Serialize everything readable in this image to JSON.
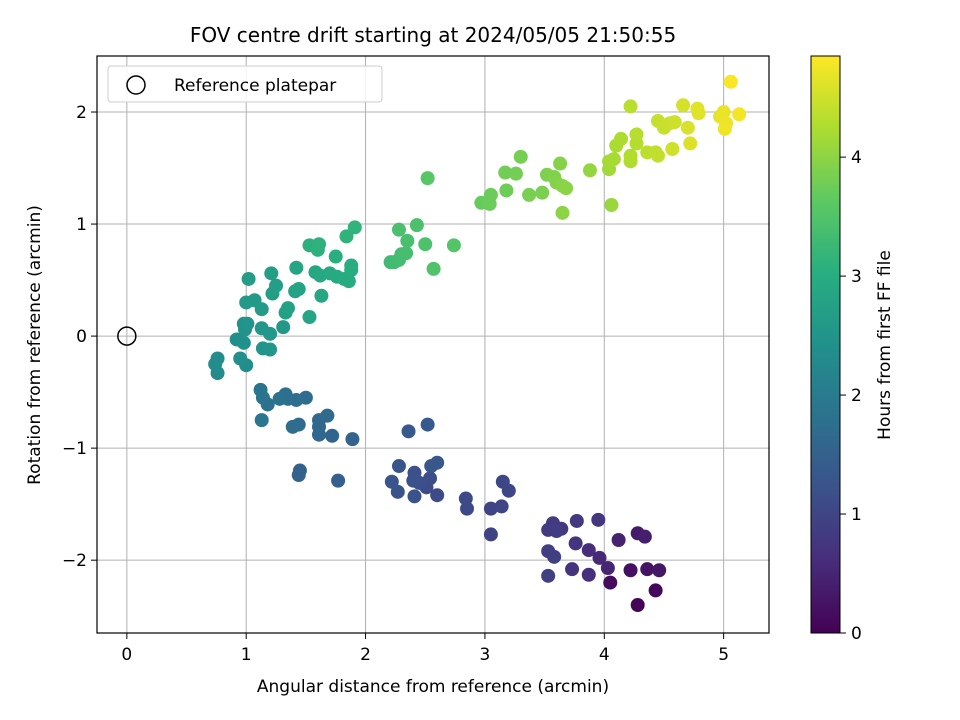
{
  "chart_data": {
    "type": "scatter",
    "title": "FOV centre drift starting at 2024/05/05 21:50:55",
    "xlabel": "Angular distance from reference (arcmin)",
    "ylabel": "Rotation from reference (arcmin)",
    "xlim": [
      -0.25,
      5.38
    ],
    "ylim": [
      -2.65,
      2.5
    ],
    "xticks": [
      0,
      1,
      2,
      3,
      4,
      5
    ],
    "xtick_labels": [
      "0",
      "1",
      "2",
      "3",
      "4",
      "5"
    ],
    "yticks": [
      -2,
      -1,
      0,
      1,
      2
    ],
    "ytick_labels": [
      "−2",
      "−1",
      "0",
      "1",
      "2"
    ],
    "grid": true,
    "legend": {
      "location": "upper-left",
      "entries": [
        "Reference platepar"
      ]
    },
    "reference_point": {
      "x": 0,
      "y": 0,
      "label": "Reference platepar"
    },
    "colorbar": {
      "label": "Hours from first FF file",
      "colormap": "viridis",
      "range": [
        0,
        4.85
      ],
      "ticks": [
        0,
        1,
        2,
        3,
        4
      ],
      "tick_labels": [
        "0",
        "1",
        "2",
        "3",
        "4"
      ]
    },
    "points": [
      {
        "x": 4.28,
        "y": -2.4,
        "c": 0.05
      },
      {
        "x": 4.43,
        "y": -2.27,
        "c": 0.1
      },
      {
        "x": 4.05,
        "y": -2.2,
        "c": 0.15
      },
      {
        "x": 4.22,
        "y": -2.09,
        "c": 0.2
      },
      {
        "x": 4.36,
        "y": -2.08,
        "c": 0.25
      },
      {
        "x": 4.46,
        "y": -2.09,
        "c": 0.3
      },
      {
        "x": 4.28,
        "y": -1.76,
        "c": 0.35
      },
      {
        "x": 4.34,
        "y": -1.79,
        "c": 0.4
      },
      {
        "x": 4.12,
        "y": -1.82,
        "c": 0.45
      },
      {
        "x": 4.03,
        "y": -2.07,
        "c": 0.5
      },
      {
        "x": 3.96,
        "y": -1.98,
        "c": 0.55
      },
      {
        "x": 3.87,
        "y": -1.91,
        "c": 0.6
      },
      {
        "x": 3.87,
        "y": -2.13,
        "c": 0.65
      },
      {
        "x": 3.73,
        "y": -2.08,
        "c": 0.7
      },
      {
        "x": 3.76,
        "y": -1.85,
        "c": 0.72
      },
      {
        "x": 3.95,
        "y": -1.64,
        "c": 0.75
      },
      {
        "x": 3.77,
        "y": -1.65,
        "c": 0.78
      },
      {
        "x": 3.64,
        "y": -1.72,
        "c": 0.8
      },
      {
        "x": 3.57,
        "y": -1.67,
        "c": 0.82
      },
      {
        "x": 3.53,
        "y": -1.73,
        "c": 0.84
      },
      {
        "x": 3.6,
        "y": -1.74,
        "c": 0.86
      },
      {
        "x": 3.53,
        "y": -1.92,
        "c": 0.88
      },
      {
        "x": 3.58,
        "y": -1.97,
        "c": 0.9
      },
      {
        "x": 3.53,
        "y": -2.14,
        "c": 0.92
      },
      {
        "x": 3.05,
        "y": -1.77,
        "c": 0.95
      },
      {
        "x": 3.05,
        "y": -1.54,
        "c": 0.98
      },
      {
        "x": 3.14,
        "y": -1.52,
        "c": 1.0
      },
      {
        "x": 3.2,
        "y": -1.38,
        "c": 1.02
      },
      {
        "x": 3.15,
        "y": -1.3,
        "c": 1.04
      },
      {
        "x": 2.85,
        "y": -1.54,
        "c": 1.06
      },
      {
        "x": 2.84,
        "y": -1.45,
        "c": 1.08
      },
      {
        "x": 2.6,
        "y": -1.42,
        "c": 1.1
      },
      {
        "x": 2.51,
        "y": -1.35,
        "c": 1.12
      },
      {
        "x": 2.54,
        "y": -1.27,
        "c": 1.14
      },
      {
        "x": 2.45,
        "y": -1.31,
        "c": 1.16
      },
      {
        "x": 2.41,
        "y": -1.22,
        "c": 1.18
      },
      {
        "x": 2.4,
        "y": -1.29,
        "c": 1.2
      },
      {
        "x": 2.41,
        "y": -1.43,
        "c": 1.22
      },
      {
        "x": 2.27,
        "y": -1.39,
        "c": 1.24
      },
      {
        "x": 2.22,
        "y": -1.3,
        "c": 1.26
      },
      {
        "x": 2.28,
        "y": -1.16,
        "c": 1.28
      },
      {
        "x": 2.55,
        "y": -1.16,
        "c": 1.3
      },
      {
        "x": 2.6,
        "y": -1.13,
        "c": 1.32
      },
      {
        "x": 2.36,
        "y": -0.85,
        "c": 1.34
      },
      {
        "x": 2.52,
        "y": -0.79,
        "c": 1.36
      },
      {
        "x": 1.77,
        "y": -1.29,
        "c": 1.45
      },
      {
        "x": 1.45,
        "y": -1.2,
        "c": 1.5
      },
      {
        "x": 1.44,
        "y": -1.24,
        "c": 1.52
      },
      {
        "x": 1.89,
        "y": -0.92,
        "c": 1.56
      },
      {
        "x": 1.72,
        "y": -0.89,
        "c": 1.58
      },
      {
        "x": 1.61,
        "y": -0.88,
        "c": 1.6
      },
      {
        "x": 1.61,
        "y": -0.81,
        "c": 1.62
      },
      {
        "x": 1.61,
        "y": -0.75,
        "c": 1.64
      },
      {
        "x": 1.68,
        "y": -0.71,
        "c": 1.66
      },
      {
        "x": 1.44,
        "y": -0.79,
        "c": 1.68
      },
      {
        "x": 1.39,
        "y": -0.81,
        "c": 1.7
      },
      {
        "x": 1.5,
        "y": -0.55,
        "c": 1.72
      },
      {
        "x": 1.42,
        "y": -0.57,
        "c": 1.74
      },
      {
        "x": 1.35,
        "y": -0.56,
        "c": 1.76
      },
      {
        "x": 1.33,
        "y": -0.52,
        "c": 1.78
      },
      {
        "x": 1.28,
        "y": -0.56,
        "c": 1.8
      },
      {
        "x": 1.18,
        "y": -0.61,
        "c": 1.82
      },
      {
        "x": 1.14,
        "y": -0.55,
        "c": 1.84
      },
      {
        "x": 1.12,
        "y": -0.48,
        "c": 1.86
      },
      {
        "x": 1.13,
        "y": -0.75,
        "c": 1.88
      },
      {
        "x": 0.76,
        "y": -0.33,
        "c": 2.3
      },
      {
        "x": 0.74,
        "y": -0.25,
        "c": 2.32
      },
      {
        "x": 0.76,
        "y": -0.2,
        "c": 2.34
      },
      {
        "x": 1.0,
        "y": -0.26,
        "c": 2.36
      },
      {
        "x": 0.95,
        "y": -0.2,
        "c": 2.38
      },
      {
        "x": 0.92,
        "y": -0.03,
        "c": 2.4
      },
      {
        "x": 0.98,
        "y": -0.06,
        "c": 2.42
      },
      {
        "x": 0.99,
        "y": 0.06,
        "c": 2.44
      },
      {
        "x": 0.98,
        "y": 0.11,
        "c": 2.46
      },
      {
        "x": 1.01,
        "y": 0.11,
        "c": 2.48
      },
      {
        "x": 1.14,
        "y": -0.11,
        "c": 2.5
      },
      {
        "x": 1.2,
        "y": -0.12,
        "c": 2.52
      },
      {
        "x": 1.13,
        "y": 0.07,
        "c": 2.54
      },
      {
        "x": 1.2,
        "y": 0.02,
        "c": 2.56
      },
      {
        "x": 1.31,
        "y": 0.08,
        "c": 2.58
      },
      {
        "x": 1.0,
        "y": 0.3,
        "c": 2.6
      },
      {
        "x": 1.07,
        "y": 0.32,
        "c": 2.62
      },
      {
        "x": 1.13,
        "y": 0.24,
        "c": 2.64
      },
      {
        "x": 1.02,
        "y": 0.51,
        "c": 2.66
      },
      {
        "x": 1.22,
        "y": 0.38,
        "c": 2.68
      },
      {
        "x": 1.25,
        "y": 0.45,
        "c": 2.7
      },
      {
        "x": 1.21,
        "y": 0.56,
        "c": 2.72
      },
      {
        "x": 1.33,
        "y": 0.21,
        "c": 2.74
      },
      {
        "x": 1.35,
        "y": 0.25,
        "c": 2.76
      },
      {
        "x": 1.41,
        "y": 0.4,
        "c": 2.78
      },
      {
        "x": 1.44,
        "y": 0.42,
        "c": 2.8
      },
      {
        "x": 1.42,
        "y": 0.61,
        "c": 2.82
      },
      {
        "x": 1.53,
        "y": 0.17,
        "c": 2.84
      },
      {
        "x": 1.63,
        "y": 0.36,
        "c": 2.86
      },
      {
        "x": 1.58,
        "y": 0.57,
        "c": 2.88
      },
      {
        "x": 1.62,
        "y": 0.54,
        "c": 2.9
      },
      {
        "x": 1.7,
        "y": 0.56,
        "c": 2.92
      },
      {
        "x": 1.76,
        "y": 0.53,
        "c": 2.94
      },
      {
        "x": 1.82,
        "y": 0.51,
        "c": 2.96
      },
      {
        "x": 1.86,
        "y": 0.49,
        "c": 2.98
      },
      {
        "x": 1.88,
        "y": 0.59,
        "c": 3.0
      },
      {
        "x": 1.88,
        "y": 0.63,
        "c": 3.02
      },
      {
        "x": 1.75,
        "y": 0.71,
        "c": 3.04
      },
      {
        "x": 1.53,
        "y": 0.81,
        "c": 3.06
      },
      {
        "x": 1.6,
        "y": 0.77,
        "c": 3.08
      },
      {
        "x": 1.61,
        "y": 0.82,
        "c": 3.1
      },
      {
        "x": 1.84,
        "y": 0.89,
        "c": 3.12
      },
      {
        "x": 1.91,
        "y": 0.97,
        "c": 3.14
      },
      {
        "x": 2.21,
        "y": 0.66,
        "c": 3.3
      },
      {
        "x": 2.24,
        "y": 0.66,
        "c": 3.32
      },
      {
        "x": 2.28,
        "y": 0.68,
        "c": 3.34
      },
      {
        "x": 2.3,
        "y": 0.73,
        "c": 3.36
      },
      {
        "x": 2.34,
        "y": 0.74,
        "c": 3.38
      },
      {
        "x": 2.35,
        "y": 0.85,
        "c": 3.4
      },
      {
        "x": 2.28,
        "y": 0.95,
        "c": 3.42
      },
      {
        "x": 2.43,
        "y": 0.99,
        "c": 3.44
      },
      {
        "x": 2.5,
        "y": 0.82,
        "c": 3.46
      },
      {
        "x": 2.57,
        "y": 0.6,
        "c": 3.48
      },
      {
        "x": 2.74,
        "y": 0.81,
        "c": 3.52
      },
      {
        "x": 2.52,
        "y": 1.41,
        "c": 3.56
      },
      {
        "x": 2.97,
        "y": 1.19,
        "c": 3.7
      },
      {
        "x": 3.04,
        "y": 1.18,
        "c": 3.72
      },
      {
        "x": 3.05,
        "y": 1.26,
        "c": 3.74
      },
      {
        "x": 3.18,
        "y": 1.3,
        "c": 3.76
      },
      {
        "x": 3.17,
        "y": 1.46,
        "c": 3.78
      },
      {
        "x": 3.26,
        "y": 1.45,
        "c": 3.8
      },
      {
        "x": 3.3,
        "y": 1.6,
        "c": 3.82
      },
      {
        "x": 3.37,
        "y": 1.26,
        "c": 3.84
      },
      {
        "x": 3.48,
        "y": 1.28,
        "c": 3.86
      },
      {
        "x": 3.52,
        "y": 1.44,
        "c": 3.88
      },
      {
        "x": 3.58,
        "y": 1.42,
        "c": 3.9
      },
      {
        "x": 3.6,
        "y": 1.37,
        "c": 3.92
      },
      {
        "x": 3.63,
        "y": 1.54,
        "c": 3.94
      },
      {
        "x": 3.65,
        "y": 1.34,
        "c": 3.96
      },
      {
        "x": 3.68,
        "y": 1.32,
        "c": 3.98
      },
      {
        "x": 3.65,
        "y": 1.1,
        "c": 4.0
      },
      {
        "x": 3.88,
        "y": 1.48,
        "c": 4.05
      },
      {
        "x": 4.06,
        "y": 1.17,
        "c": 4.1
      },
      {
        "x": 4.04,
        "y": 1.49,
        "c": 4.15
      },
      {
        "x": 4.04,
        "y": 1.56,
        "c": 4.18
      },
      {
        "x": 4.08,
        "y": 1.58,
        "c": 4.2
      },
      {
        "x": 4.1,
        "y": 1.7,
        "c": 4.22
      },
      {
        "x": 4.14,
        "y": 1.76,
        "c": 4.24
      },
      {
        "x": 4.22,
        "y": 1.56,
        "c": 4.26
      },
      {
        "x": 4.22,
        "y": 1.61,
        "c": 4.28
      },
      {
        "x": 4.27,
        "y": 1.72,
        "c": 4.3
      },
      {
        "x": 4.27,
        "y": 1.8,
        "c": 4.32
      },
      {
        "x": 4.22,
        "y": 2.05,
        "c": 4.34
      },
      {
        "x": 4.36,
        "y": 1.64,
        "c": 4.36
      },
      {
        "x": 4.43,
        "y": 1.64,
        "c": 4.38
      },
      {
        "x": 4.45,
        "y": 1.61,
        "c": 4.4
      },
      {
        "x": 4.45,
        "y": 1.92,
        "c": 4.42
      },
      {
        "x": 4.5,
        "y": 1.86,
        "c": 4.44
      },
      {
        "x": 4.55,
        "y": 1.9,
        "c": 4.46
      },
      {
        "x": 4.59,
        "y": 1.91,
        "c": 4.48
      },
      {
        "x": 4.57,
        "y": 1.67,
        "c": 4.5
      },
      {
        "x": 4.66,
        "y": 2.06,
        "c": 4.55
      },
      {
        "x": 4.7,
        "y": 1.86,
        "c": 4.58
      },
      {
        "x": 4.72,
        "y": 1.72,
        "c": 4.6
      },
      {
        "x": 4.78,
        "y": 2.03,
        "c": 4.62
      },
      {
        "x": 4.79,
        "y": 1.99,
        "c": 4.64
      },
      {
        "x": 4.97,
        "y": 1.96,
        "c": 4.68
      },
      {
        "x": 5.0,
        "y": 2.0,
        "c": 4.7
      },
      {
        "x": 5.02,
        "y": 1.9,
        "c": 4.72
      },
      {
        "x": 5.01,
        "y": 1.85,
        "c": 4.74
      },
      {
        "x": 5.13,
        "y": 1.98,
        "c": 4.78
      },
      {
        "x": 5.06,
        "y": 2.27,
        "c": 4.82
      }
    ]
  }
}
